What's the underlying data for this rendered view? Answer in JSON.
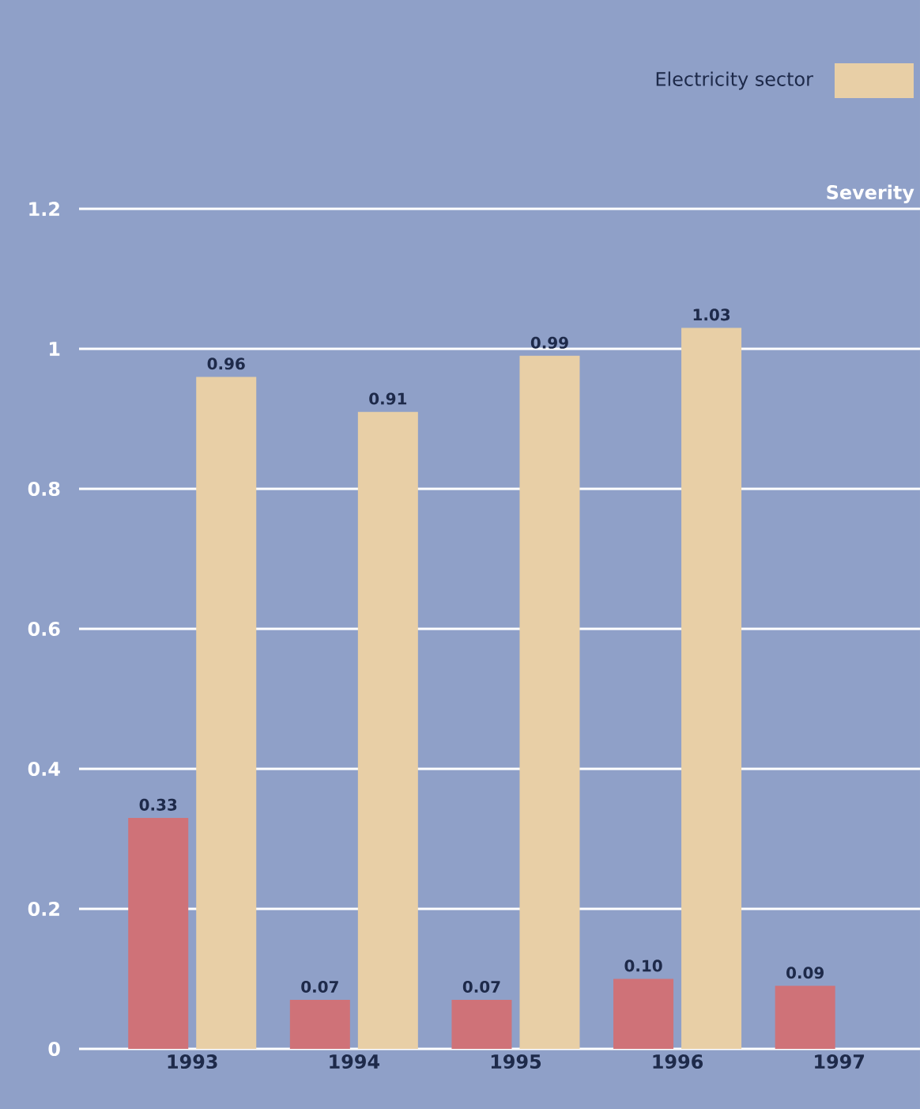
{
  "chart_data": {
    "type": "bar",
    "ylabel": "Severity",
    "categories": [
      "1993",
      "1994",
      "1995",
      "1996",
      "1997"
    ],
    "series": [
      {
        "color": "#cf7278",
        "values": [
          0.33,
          0.07,
          0.07,
          0.1,
          0.09
        ],
        "value_labels": [
          "0.33",
          "0.07",
          "0.07",
          "0.10",
          "0.09"
        ]
      },
      {
        "name": "Electricity sector",
        "color": "#e8cfa6",
        "values": [
          0.96,
          0.91,
          0.99,
          1.03,
          null
        ],
        "value_labels": [
          "0.96",
          "0.91",
          "0.99",
          "1.03",
          null
        ]
      }
    ],
    "ylim": [
      0,
      1.2
    ],
    "yticks": [
      0,
      0.2,
      0.4,
      0.6,
      0.8,
      {
        "value": 1,
        "label": "1"
      },
      1.2
    ],
    "grid": "y",
    "legend": "top right"
  }
}
